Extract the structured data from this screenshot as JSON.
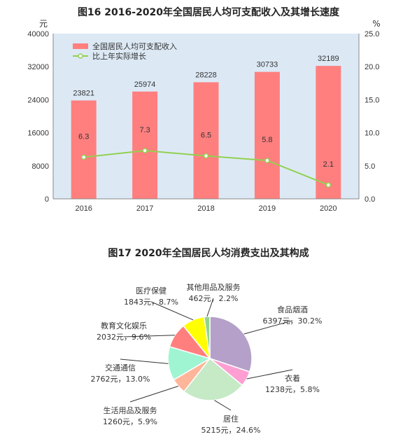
{
  "chart16": {
    "title": "图16   2016-2020年全国居民人均可支配收入及其增长速度",
    "left_unit": "元",
    "right_unit": "%",
    "left_ticks": [
      "0",
      "8000",
      "16000",
      "24000",
      "32000",
      "40000"
    ],
    "right_ticks": [
      "0.0",
      "5.0",
      "10.0",
      "15.0",
      "20.0",
      "25.0"
    ],
    "legend_bar": "全国居民人均可支配收入",
    "legend_line": "比上年实际增长"
  },
  "chart17": {
    "title": "图17   2020年全国居民人均消费支出及其构成",
    "labels": [
      {
        "name": "食品烟酒",
        "value": "6397元，30.2%"
      },
      {
        "name": "衣着",
        "value": "1238元，5.8%"
      },
      {
        "name": "居住",
        "value": "5215元，24.6%"
      },
      {
        "name": "生活用品及服务",
        "value": "1260元，5.9%"
      },
      {
        "name": "交通通信",
        "value": "2762元，13.0%"
      },
      {
        "name": "教育文化娱乐",
        "value": "2032元，9.6%"
      },
      {
        "name": "医疗保健",
        "value": "1843元，8.7%"
      },
      {
        "name": "其他用品及服务",
        "value": "462元，2.2%"
      }
    ]
  },
  "chart_data": [
    {
      "type": "bar",
      "title": "图16   2016-2020年全国居民人均可支配收入及其增长速度",
      "categories": [
        "2016",
        "2017",
        "2018",
        "2019",
        "2020"
      ],
      "series": [
        {
          "name": "全国居民人均可支配收入",
          "type": "bar",
          "axis": "left",
          "values": [
            23821,
            25974,
            28228,
            30733,
            32189
          ],
          "color": "#ff7f7f"
        },
        {
          "name": "比上年实际增长",
          "type": "line",
          "axis": "right",
          "values": [
            6.3,
            7.3,
            6.5,
            5.8,
            2.1
          ],
          "color": "#92d050"
        }
      ],
      "ylim": [
        0,
        40000
      ],
      "y2lim": [
        0,
        25
      ],
      "legend_position": "top-left",
      "grid": false,
      "background": "#dce9f5"
    },
    {
      "type": "pie",
      "title": "图17   2020年全国居民人均消费支出及其构成",
      "categories": [
        "食品烟酒",
        "衣着",
        "居住",
        "生活用品及服务",
        "交通通信",
        "教育文化娱乐",
        "医疗保健",
        "其他用品及服务"
      ],
      "values": [
        6397,
        1238,
        5215,
        1260,
        2762,
        2032,
        1843,
        462
      ],
      "percents": [
        30.2,
        5.8,
        24.6,
        5.9,
        13.0,
        9.6,
        8.7,
        2.2
      ],
      "colors": [
        "#b4a0c8",
        "#ff9ed2",
        "#c6e9c6",
        "#ffb59a",
        "#9ff5d2",
        "#ff7f7f",
        "#ffff00",
        "#8fd48f"
      ]
    }
  ]
}
